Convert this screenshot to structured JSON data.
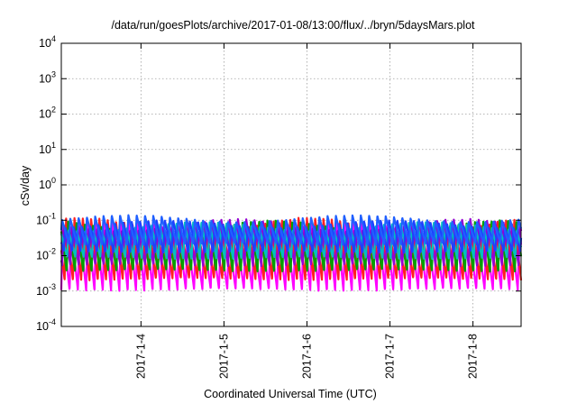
{
  "chart_data": {
    "type": "line",
    "title": "/data/run/goesPlots/archive/2017-01-08/13:00/flux/../bryn/5daysMars.plot",
    "xlabel": "Coordinated Universal Time (UTC)",
    "ylabel": "cSv/day",
    "yscale": "log",
    "ylim": [
      0.0001,
      10000
    ],
    "xlim": [
      0.0,
      5.54
    ],
    "grid": true,
    "y_ticks": [
      {
        "value": 0.0001,
        "base": "10",
        "exp": "-4"
      },
      {
        "value": 0.001,
        "base": "10",
        "exp": "-3"
      },
      {
        "value": 0.01,
        "base": "10",
        "exp": "-2"
      },
      {
        "value": 0.1,
        "base": "10",
        "exp": "-1"
      },
      {
        "value": 1,
        "base": "10",
        "exp": "0"
      },
      {
        "value": 10,
        "base": "10",
        "exp": "1"
      },
      {
        "value": 100,
        "base": "10",
        "exp": "2"
      },
      {
        "value": 1000,
        "base": "10",
        "exp": "3"
      },
      {
        "value": 10000,
        "base": "10",
        "exp": "4"
      }
    ],
    "x_ticks": [
      {
        "pos": 0.96,
        "label": "2017-1-4"
      },
      {
        "pos": 1.96,
        "label": "2017-1-5"
      },
      {
        "pos": 2.96,
        "label": "2017-1-6"
      },
      {
        "pos": 3.96,
        "label": "2017-1-7"
      },
      {
        "pos": 4.96,
        "label": "2017-1-8"
      }
    ],
    "series": [
      {
        "color": "#ff00ff",
        "min": 0.001,
        "max": 0.1,
        "phase": 0.0
      },
      {
        "color": "#ff2020",
        "min": 0.002,
        "max": 0.12,
        "phase": 0.6
      },
      {
        "color": "#00a000",
        "min": 0.0035,
        "max": 0.1,
        "phase": 0.35
      },
      {
        "color": "#9400d3",
        "min": 0.005,
        "max": 0.11,
        "phase": 0.9
      },
      {
        "color": "#00c0c0",
        "min": 0.008,
        "max": 0.09,
        "phase": 1.3
      },
      {
        "color": "#1e40ff",
        "min": 0.012,
        "max": 0.1,
        "phase": 1.7
      },
      {
        "color": "#2060ff",
        "min": 0.02,
        "max": 0.14,
        "phase": 2.1
      }
    ],
    "cycle_period": 0.1,
    "n_points": 2200
  }
}
